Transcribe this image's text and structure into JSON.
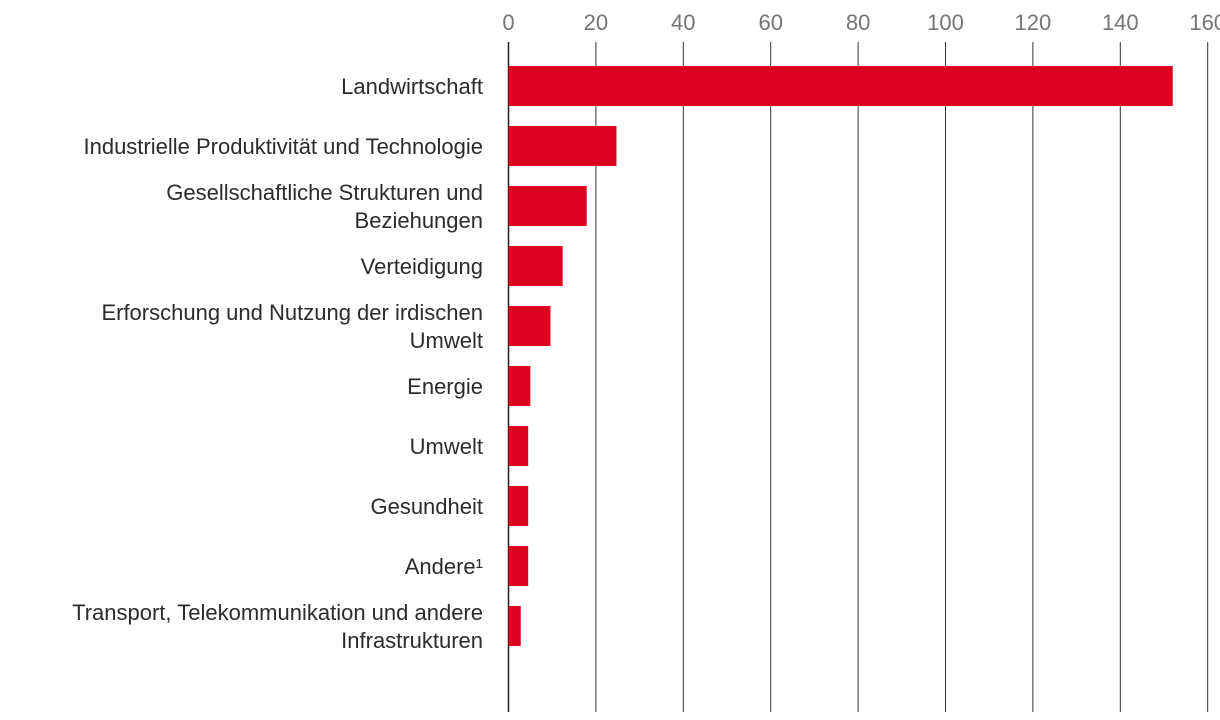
{
  "chart_data": {
    "type": "bar",
    "orientation": "horizontal",
    "title": "",
    "xlabel": "",
    "ylabel": "",
    "xlim": [
      0,
      160
    ],
    "x_ticks": [
      0,
      20,
      40,
      60,
      80,
      100,
      120,
      140,
      160
    ],
    "x_axis_position": "top",
    "grid": true,
    "bar_color": "#DD0020",
    "categories": [
      [
        "Landwirtschaft"
      ],
      [
        "Industrielle Produktivität und Technologie"
      ],
      [
        "Gesellschaftliche Strukturen und",
        "Beziehungen"
      ],
      [
        "Verteidigung"
      ],
      [
        "Erforschung und Nutzung der irdischen",
        "Umwelt"
      ],
      [
        "Energie"
      ],
      [
        "Umwelt"
      ],
      [
        "Gesundheit"
      ],
      [
        "Andere¹"
      ],
      [
        "Transport, Telekommunikation und andere",
        "Infrastrukturen"
      ]
    ],
    "values": [
      152,
      24.7,
      17.9,
      12.4,
      9.6,
      5,
      4.5,
      4.5,
      4.5,
      2.8
    ]
  }
}
